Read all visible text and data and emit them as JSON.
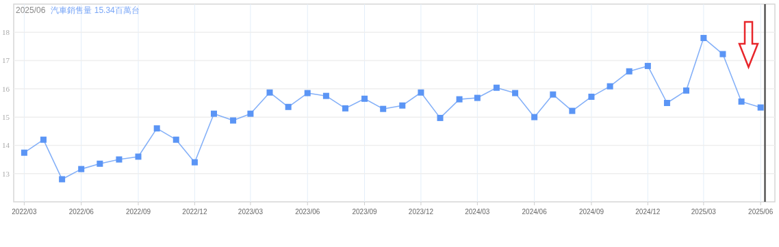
{
  "chart_data": {
    "type": "line",
    "title": "2025/06",
    "subtitle": "汽車銷售量 15.34百萬台",
    "x": [
      "2022-03",
      "2022-04",
      "2022-05",
      "2022-06",
      "2022-07",
      "2022-08",
      "2022-09",
      "2022-10",
      "2022-11",
      "2022-12",
      "2023-01",
      "2023-02",
      "2023-03",
      "2023-04",
      "2023-05",
      "2023-06",
      "2023-07",
      "2023-08",
      "2023-09",
      "2023-10",
      "2023-11",
      "2023-12",
      "2024-01",
      "2024-02",
      "2024-03",
      "2024-04",
      "2024-05",
      "2024-06",
      "2024-07",
      "2024-08",
      "2024-09",
      "2024-10",
      "2024-11",
      "2024-12",
      "2025-01",
      "2025-02",
      "2025-03",
      "2025-04",
      "2025-05",
      "2025-06"
    ],
    "series": [
      {
        "color": "#5b95f5",
        "values": [
          13.74,
          14.2,
          12.8,
          13.16,
          13.35,
          13.5,
          13.6,
          14.6,
          14.2,
          13.4,
          15.12,
          14.88,
          15.12,
          15.87,
          15.36,
          15.85,
          15.75,
          15.31,
          15.65,
          15.29,
          15.41,
          15.87,
          14.97,
          15.63,
          15.68,
          16.04,
          15.85,
          15.0,
          15.8,
          15.22,
          15.72,
          16.09,
          16.62,
          16.81,
          15.5,
          15.94,
          17.8,
          17.23,
          15.55,
          15.34
        ]
      }
    ],
    "xlim": [
      "2022-02-12",
      "2025-06-24"
    ],
    "xticks": [
      {
        "value": "2022-03",
        "label": "2022/03"
      },
      {
        "value": "2022-06",
        "label": "2022/06"
      },
      {
        "value": "2022-09",
        "label": "2022/09"
      },
      {
        "value": "2022-12",
        "label": "2022/12"
      },
      {
        "value": "2023-03",
        "label": "2023/03"
      },
      {
        "value": "2023-06",
        "label": "2023/06"
      },
      {
        "value": "2023-09",
        "label": "2023/09"
      },
      {
        "value": "2023-12",
        "label": "2023/12"
      },
      {
        "value": "2024-03",
        "label": "2024/03"
      },
      {
        "value": "2024-06",
        "label": "2024/06"
      },
      {
        "value": "2024-09",
        "label": "2024/09"
      },
      {
        "value": "2024-12",
        "label": "2024/12"
      },
      {
        "value": "2025-03",
        "label": "2025/03"
      },
      {
        "value": "2025-06",
        "label": "2025/06"
      }
    ],
    "ylim": [
      12,
      19
    ],
    "yticks": [
      13,
      14,
      15,
      16,
      17,
      18
    ],
    "ref_lines": [
      {
        "axis": "x",
        "value": "2025-06-08",
        "color": "#555555"
      }
    ],
    "grid": true,
    "marker": "square",
    "line_style": "solid"
  }
}
